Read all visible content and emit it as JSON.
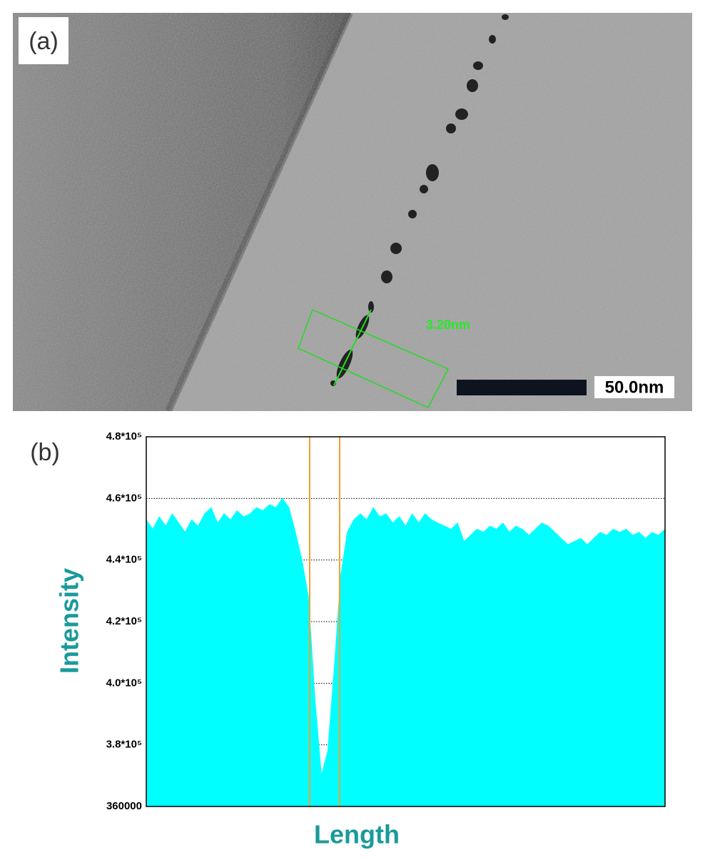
{
  "panel_a": {
    "label": "(a)",
    "measurement": "3.20nm",
    "scale_bar": "50.0nm"
  },
  "chart_data": {
    "type": "area",
    "panel_label": "(b)",
    "x_label": "Length",
    "y_label": "Intensity",
    "color": "#00ffff",
    "grid": true,
    "values": [
      453,
      450,
      454,
      451,
      455,
      452,
      449,
      453,
      451,
      455,
      457,
      452,
      455,
      453,
      456,
      454,
      455,
      457,
      456,
      458,
      457,
      460,
      457,
      449,
      440,
      428,
      395,
      370,
      378,
      405,
      435,
      449,
      453,
      455,
      453,
      457,
      454,
      455,
      452,
      454,
      451,
      455,
      452,
      455,
      453,
      452,
      451,
      450,
      452,
      446,
      448,
      450,
      449,
      451,
      450,
      452,
      449,
      451,
      450,
      448,
      450,
      452,
      451,
      449,
      447,
      445,
      446,
      447,
      445,
      447,
      449,
      448,
      450,
      449,
      450,
      448,
      449,
      447,
      449,
      448,
      450
    ],
    "ylim": [
      360000,
      480000
    ],
    "yticks": [
      360000,
      {
        "value": 380000,
        "label": "3.8*10⁵"
      },
      {
        "value": 400000,
        "label": "4.0*10⁵"
      },
      {
        "value": 420000,
        "label": "4.2*10⁵"
      },
      {
        "value": 440000,
        "label": "4.4*10⁵"
      },
      {
        "value": 460000,
        "label": "4.6*10⁵"
      },
      {
        "value": 480000,
        "label": "4.8*10⁵"
      }
    ]
  }
}
